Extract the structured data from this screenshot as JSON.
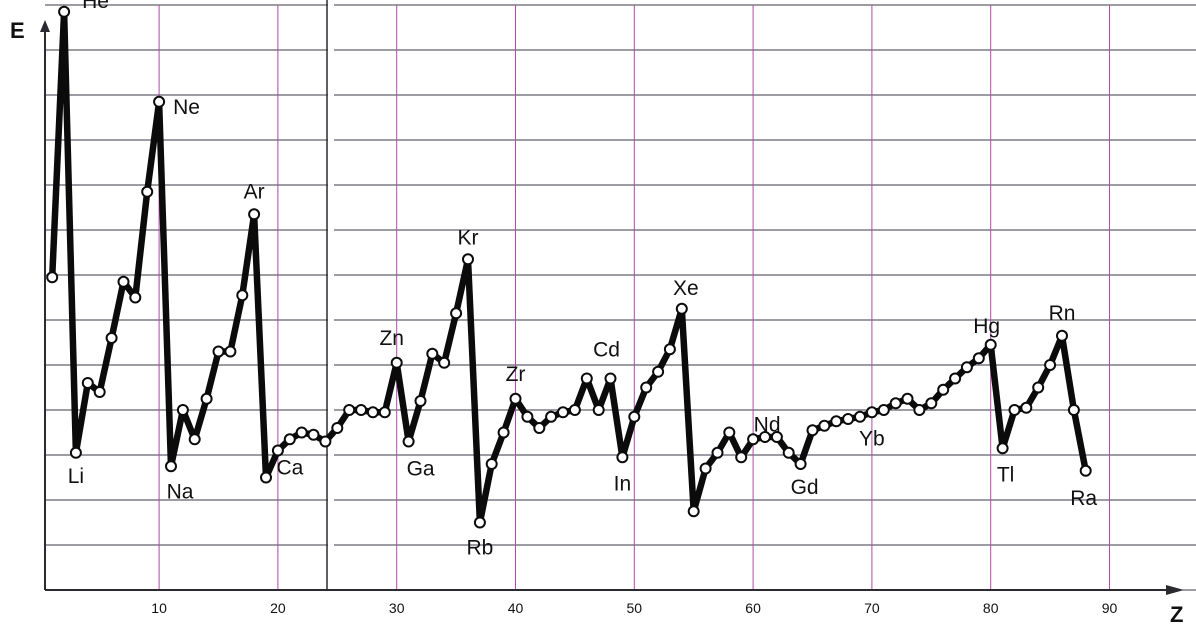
{
  "chart_data": {
    "type": "line",
    "title": "",
    "xlabel": "Z",
    "ylabel": "E",
    "xlim": [
      0,
      94
    ],
    "ylim": [
      0,
      13
    ],
    "grid": true,
    "x_ticks": [
      10,
      20,
      30,
      40,
      50,
      60,
      70,
      80,
      90
    ],
    "x_tick_labels": [
      "10",
      "20",
      "30",
      "40",
      "50",
      "60",
      "70",
      "80",
      "90"
    ],
    "series": [
      {
        "x": [
          1,
          2,
          3,
          4,
          5,
          6,
          7,
          8,
          9,
          10,
          11,
          12,
          13,
          14,
          15,
          16,
          17,
          18,
          19,
          20,
          21,
          22,
          23,
          24,
          25,
          26,
          27,
          28,
          29,
          30,
          31,
          32,
          33,
          34,
          35,
          36,
          37,
          38,
          39,
          40,
          41,
          42,
          43,
          44,
          45,
          46,
          47,
          48,
          49,
          50,
          51,
          52,
          53,
          54,
          55,
          56,
          57,
          58,
          59,
          60,
          61,
          62,
          63,
          64,
          65,
          66,
          67,
          68,
          69,
          70,
          71,
          72,
          73,
          74,
          75,
          76,
          77,
          78,
          79,
          80,
          81,
          82,
          83,
          84,
          85,
          86,
          87,
          88
        ],
        "y": [
          6.95,
          12.85,
          3.05,
          4.6,
          4.4,
          5.6,
          6.85,
          6.5,
          8.85,
          10.85,
          2.75,
          4.0,
          3.35,
          4.25,
          5.3,
          5.3,
          6.55,
          8.35,
          2.5,
          3.1,
          3.35,
          3.5,
          3.45,
          3.3,
          3.6,
          4.0,
          4.0,
          3.95,
          3.95,
          5.05,
          3.3,
          4.2,
          5.25,
          5.05,
          6.15,
          7.35,
          1.5,
          2.8,
          3.5,
          4.25,
          3.85,
          3.6,
          3.85,
          3.95,
          4.0,
          4.7,
          4.0,
          4.7,
          2.95,
          3.85,
          4.5,
          4.85,
          5.35,
          6.25,
          1.75,
          2.7,
          3.05,
          3.5,
          2.95,
          3.35,
          3.4,
          3.4,
          3.05,
          2.8,
          3.55,
          3.65,
          3.75,
          3.8,
          3.85,
          3.95,
          4.0,
          4.15,
          4.25,
          4.0,
          4.15,
          4.45,
          4.7,
          4.95,
          5.15,
          5.45,
          3.15,
          4.0,
          4.05,
          4.5,
          5.0,
          5.65,
          4.0,
          2.65
        ]
      }
    ],
    "point_labels": [
      {
        "text": "He",
        "x": 2
      },
      {
        "text": "Li",
        "x": 3
      },
      {
        "text": "Ne",
        "x": 10
      },
      {
        "text": "Na",
        "x": 11
      },
      {
        "text": "Ar",
        "x": 18
      },
      {
        "text": "Ca",
        "x": 20
      },
      {
        "text": "Zn",
        "x": 30
      },
      {
        "text": "Ga",
        "x": 31
      },
      {
        "text": "Kr",
        "x": 36
      },
      {
        "text": "Rb",
        "x": 37
      },
      {
        "text": "Zr",
        "x": 40
      },
      {
        "text": "Cd",
        "x": 48
      },
      {
        "text": "In",
        "x": 49
      },
      {
        "text": "Xe",
        "x": 54
      },
      {
        "text": "Nd",
        "x": 60
      },
      {
        "text": "Gd",
        "x": 64
      },
      {
        "text": "Yb",
        "x": 70
      },
      {
        "text": "Hg",
        "x": 80
      },
      {
        "text": "Tl",
        "x": 81
      },
      {
        "text": "Rn",
        "x": 86
      },
      {
        "text": "Ra",
        "x": 88
      }
    ]
  }
}
